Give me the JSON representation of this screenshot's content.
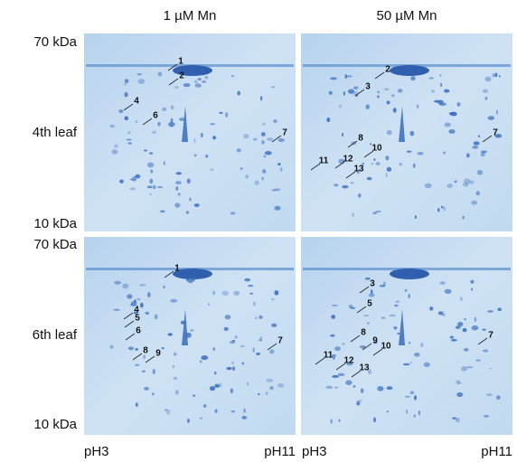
{
  "column_headers": [
    "1 µM Mn",
    "50 µM Mn"
  ],
  "rows": [
    {
      "label": "4th leaf",
      "mw_top": "70 kDa",
      "mw_bottom": "10 kDa"
    },
    {
      "label": "6th leaf",
      "mw_top": "70 kDa",
      "mw_bottom": "10 kDa"
    }
  ],
  "ph_labels": [
    {
      "left": "pH3",
      "right": "pH11"
    },
    {
      "left": "pH3",
      "right": "pH11"
    }
  ],
  "panels": [
    {
      "spots": [
        "1",
        "2",
        "4",
        "6",
        "7"
      ]
    },
    {
      "spots": [
        "2",
        "3",
        "7",
        "8",
        "10",
        "11",
        "12",
        "13"
      ]
    },
    {
      "spots": [
        "1",
        "4",
        "5",
        "6",
        "7",
        "8",
        "9"
      ]
    },
    {
      "spots": [
        "3",
        "5",
        "7",
        "8",
        "9",
        "10",
        "11",
        "12",
        "13"
      ]
    }
  ]
}
